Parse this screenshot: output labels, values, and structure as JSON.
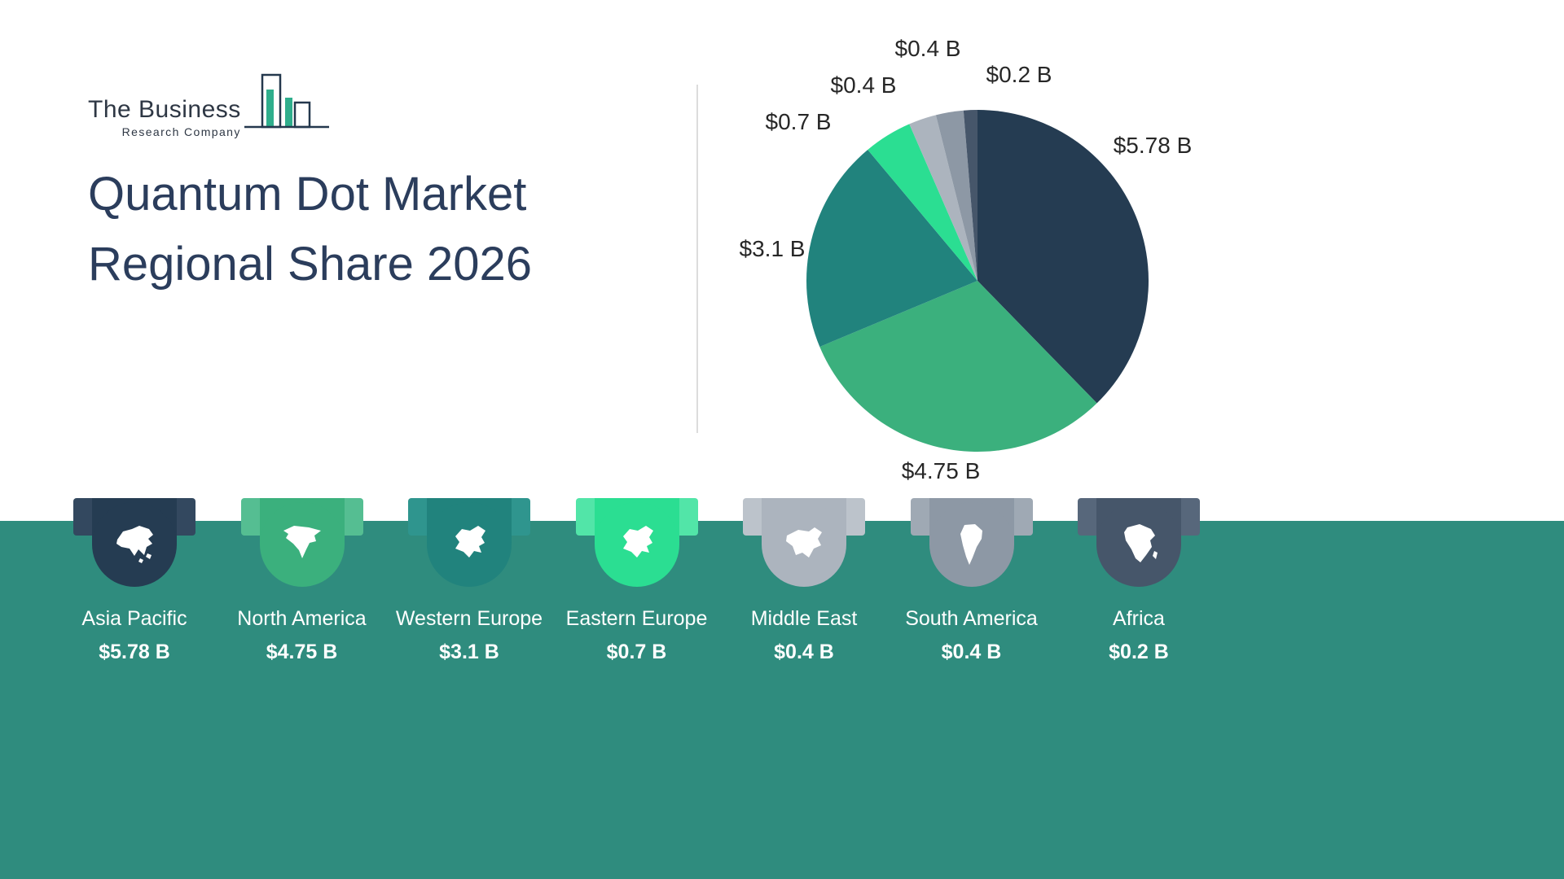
{
  "logo": {
    "line1": "The Business",
    "line2": "Research Company"
  },
  "title": {
    "line1": "Quantum Dot Market",
    "line2": "Regional Share 2026"
  },
  "chart_data": {
    "type": "pie",
    "title": "Quantum Dot Market Regional Share 2026",
    "unit": "$ B",
    "categories": [
      "Asia Pacific",
      "North America",
      "Western Europe",
      "Eastern Europe",
      "Middle East",
      "South America",
      "Africa"
    ],
    "values": [
      5.78,
      4.75,
      3.1,
      0.7,
      0.4,
      0.4,
      0.2
    ],
    "labels": [
      "$5.78 B",
      "$4.75 B",
      "$3.1 B",
      "$0.7 B",
      "$0.4 B",
      "$0.4 B",
      "$0.2 B"
    ],
    "colors": [
      "#253c52",
      "#3bb07d",
      "#21837d",
      "#2bde92",
      "#acb4be",
      "#8d98a5",
      "#46566a"
    ],
    "start_angle_deg": 0,
    "direction": "clockwise",
    "legend_position": "none",
    "label_positions": [
      [
        565,
        168
      ],
      [
        305,
        568
      ],
      [
        98,
        295
      ],
      [
        130,
        139
      ],
      [
        210,
        94
      ],
      [
        289,
        49
      ],
      [
        401,
        81
      ]
    ]
  },
  "regions": [
    {
      "name": "Asia Pacific",
      "value": "$5.78 B",
      "color": "#253c52",
      "shade": "#33485f",
      "icon": "asia-map-icon"
    },
    {
      "name": "North America",
      "value": "$4.75 B",
      "color": "#3bb07d",
      "shade": "#55be92",
      "icon": "north-america-map-icon"
    },
    {
      "name": "Western Europe",
      "value": "$3.1 B",
      "color": "#21837d",
      "shade": "#2f958e",
      "icon": "western-europe-map-icon"
    },
    {
      "name": "Eastern Europe",
      "value": "$0.7 B",
      "color": "#2bde92",
      "shade": "#52e5a8",
      "icon": "eastern-europe-map-icon"
    },
    {
      "name": "Middle East",
      "value": "$0.4 B",
      "color": "#acb4be",
      "shade": "#bcc3cb",
      "icon": "middle-east-map-icon"
    },
    {
      "name": "South America",
      "value": "$0.4 B",
      "color": "#8d98a5",
      "shade": "#9fa9b4",
      "icon": "south-america-map-icon"
    },
    {
      "name": "Africa",
      "value": "$0.2 B",
      "color": "#46566a",
      "shade": "#57677b",
      "icon": "africa-map-icon"
    }
  ],
  "footer": {
    "band_color": "#2f8c7e"
  }
}
